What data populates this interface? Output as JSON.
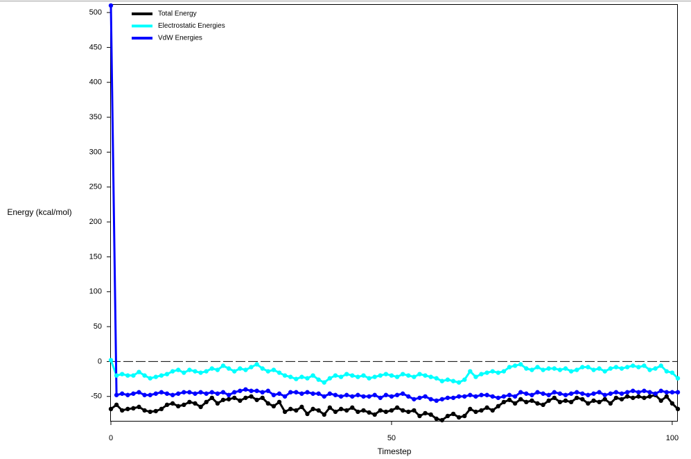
{
  "chart_data": {
    "type": "line",
    "x_label": "Timestep",
    "y_label": "Energy (kcal/mol)",
    "x": [
      0,
      1,
      2,
      3,
      4,
      5,
      6,
      7,
      8,
      9,
      10,
      11,
      12,
      13,
      14,
      15,
      16,
      17,
      18,
      19,
      20,
      21,
      22,
      23,
      24,
      25,
      26,
      27,
      28,
      29,
      30,
      31,
      32,
      33,
      34,
      35,
      36,
      37,
      38,
      39,
      40,
      41,
      42,
      43,
      44,
      45,
      46,
      47,
      48,
      49,
      50,
      51,
      52,
      53,
      54,
      55,
      56,
      57,
      58,
      59,
      60,
      61,
      62,
      63,
      64,
      65,
      66,
      67,
      68,
      69,
      70,
      71,
      72,
      73,
      74,
      75,
      76,
      77,
      78,
      79,
      80,
      81,
      82,
      83,
      84,
      85,
      86,
      87,
      88,
      89,
      90,
      91,
      92,
      93,
      94,
      95,
      96,
      97,
      98,
      99,
      100,
      101
    ],
    "series": [
      {
        "name": "Total Energy",
        "color": "#000000",
        "values": [
          -68,
          -62,
          -70,
          -68,
          -67,
          -65,
          -70,
          -72,
          -71,
          -68,
          -62,
          -60,
          -64,
          -62,
          -58,
          -60,
          -65,
          -58,
          -52,
          -60,
          -55,
          -54,
          -52,
          -56,
          -52,
          -50,
          -55,
          -52,
          -60,
          -64,
          -58,
          -72,
          -68,
          -70,
          -65,
          -75,
          -68,
          -70,
          -76,
          -66,
          -72,
          -68,
          -70,
          -66,
          -72,
          -70,
          -73,
          -76,
          -70,
          -72,
          -70,
          -66,
          -70,
          -72,
          -70,
          -78,
          -74,
          -76,
          -82,
          -84,
          -78,
          -75,
          -80,
          -78,
          -68,
          -72,
          -70,
          -66,
          -70,
          -64,
          -58,
          -55,
          -60,
          -54,
          -58,
          -56,
          -60,
          -62,
          -56,
          -52,
          -58,
          -56,
          -58,
          -52,
          -54,
          -60,
          -56,
          -58,
          -54,
          -60,
          -52,
          -54,
          -50,
          -52,
          -50,
          -52,
          -50,
          -48,
          -56,
          -50,
          -60,
          -68
        ]
      },
      {
        "name": "Electrostatic Energies",
        "color": "#00ffff",
        "values": [
          2,
          -20,
          -18,
          -20,
          -20,
          -15,
          -20,
          -24,
          -22,
          -20,
          -18,
          -14,
          -12,
          -16,
          -12,
          -14,
          -16,
          -14,
          -10,
          -12,
          -6,
          -10,
          -14,
          -10,
          -12,
          -8,
          -4,
          -10,
          -14,
          -12,
          -16,
          -20,
          -22,
          -25,
          -22,
          -24,
          -20,
          -26,
          -30,
          -24,
          -20,
          -22,
          -18,
          -20,
          -22,
          -20,
          -24,
          -22,
          -20,
          -18,
          -20,
          -22,
          -18,
          -20,
          -22,
          -18,
          -20,
          -22,
          -24,
          -28,
          -26,
          -28,
          -30,
          -26,
          -14,
          -22,
          -18,
          -16,
          -14,
          -16,
          -14,
          -8,
          -6,
          -4,
          -10,
          -12,
          -8,
          -12,
          -10,
          -10,
          -12,
          -10,
          -14,
          -12,
          -8,
          -8,
          -12,
          -10,
          -14,
          -10,
          -8,
          -10,
          -8,
          -6,
          -8,
          -6,
          -12,
          -10,
          -6,
          -14,
          -16,
          -24
        ]
      },
      {
        "name": "VdW Energies",
        "color": "#0000ff",
        "values": [
          510,
          -48,
          -46,
          -48,
          -46,
          -44,
          -48,
          -48,
          -46,
          -44,
          -46,
          -48,
          -46,
          -44,
          -44,
          -46,
          -44,
          -46,
          -44,
          -46,
          -44,
          -48,
          -44,
          -42,
          -40,
          -42,
          -42,
          -44,
          -42,
          -48,
          -46,
          -50,
          -44,
          -44,
          -46,
          -44,
          -46,
          -46,
          -50,
          -46,
          -48,
          -50,
          -48,
          -50,
          -48,
          -50,
          -50,
          -48,
          -52,
          -48,
          -50,
          -48,
          -46,
          -50,
          -54,
          -52,
          -50,
          -54,
          -56,
          -54,
          -52,
          -52,
          -50,
          -50,
          -48,
          -50,
          -48,
          -48,
          -50,
          -52,
          -50,
          -48,
          -50,
          -44,
          -46,
          -48,
          -44,
          -46,
          -48,
          -44,
          -46,
          -48,
          -46,
          -44,
          -46,
          -48,
          -46,
          -44,
          -48,
          -46,
          -44,
          -46,
          -44,
          -42,
          -44,
          -42,
          -44,
          -46,
          -42,
          -44,
          -44,
          -44
        ]
      }
    ],
    "xlim": [
      0,
      101
    ],
    "xticks": [
      0,
      50,
      100
    ],
    "ylim": [
      -85,
      511
    ],
    "yticks": [
      -50,
      0,
      50,
      100,
      150,
      200,
      250,
      300,
      350,
      400,
      450,
      500
    ],
    "zero_line": true,
    "legend": "upper left"
  }
}
